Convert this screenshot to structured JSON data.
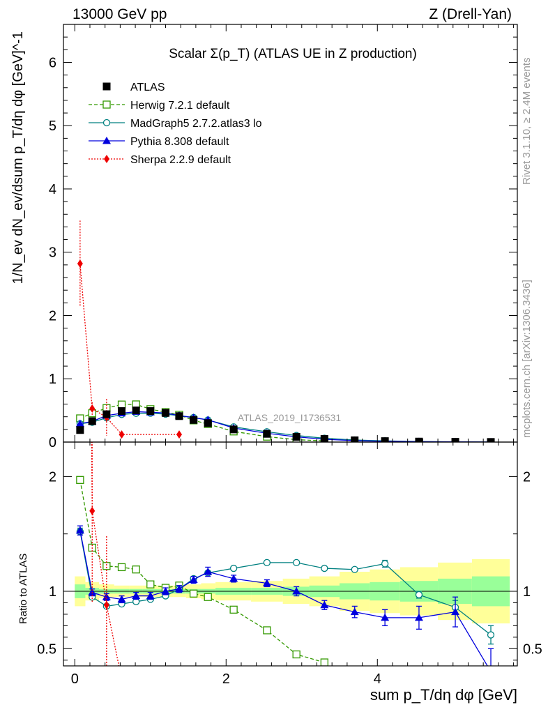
{
  "header": {
    "left": "13000 GeV pp",
    "right": "Z (Drell-Yan)"
  },
  "side_labels": {
    "rivet": "Rivet 3.1.10, ≥ 2.4M events",
    "mcplots": "mcplots.cern.ch [arXiv:1306.3436]"
  },
  "chart_data": {
    "type": "line",
    "title": "Scalar Σ(p_T) (ATLAS UE in Z production)",
    "watermark": "ATLAS_2019_I1736531",
    "xlabel": "sum p_T/dη dφ [GeV]",
    "ylabel_main": "1/N_ev dN_ev/dsum p_T/dη dφ [GeV]^-1",
    "ylabel_ratio": "Ratio to ATLAS",
    "xlim": [
      -0.15,
      5.85
    ],
    "ylim_main": [
      0,
      6.6
    ],
    "ylim_ratio": [
      0.35,
      2.3
    ],
    "x_ticks": [
      0,
      2,
      4
    ],
    "y_ticks_main": [
      0,
      1,
      2,
      3,
      4,
      5,
      6
    ],
    "y_ticks_ratio": [
      0.5,
      1,
      2
    ],
    "legend_position": "top-left",
    "x": [
      0.07,
      0.23,
      0.42,
      0.62,
      0.81,
      1.0,
      1.2,
      1.38,
      1.57,
      1.76,
      2.1,
      2.54,
      2.93,
      3.3,
      3.7,
      4.1,
      4.55,
      5.03,
      5.5
    ],
    "data_series": {
      "name": "ATLAS",
      "values": [
        0.19,
        0.33,
        0.44,
        0.49,
        0.5,
        0.49,
        0.46,
        0.41,
        0.35,
        0.3,
        0.2,
        0.13,
        0.083,
        0.05,
        0.028,
        0.015,
        0.008,
        0.004,
        0.002
      ]
    },
    "band_x_edges": [
      0.0,
      0.14,
      0.32,
      0.52,
      0.72,
      0.9,
      1.1,
      1.3,
      1.47,
      1.67,
      1.86,
      2.33,
      2.75,
      3.1,
      3.5,
      3.9,
      4.3,
      4.8,
      5.25,
      5.75
    ],
    "band_inner": [
      0.06,
      0.03,
      0.02,
      0.02,
      0.02,
      0.02,
      0.02,
      0.02,
      0.02,
      0.02,
      0.03,
      0.03,
      0.04,
      0.05,
      0.07,
      0.08,
      0.09,
      0.11,
      0.13
    ],
    "band_outer": [
      0.13,
      0.08,
      0.06,
      0.05,
      0.05,
      0.05,
      0.05,
      0.05,
      0.06,
      0.07,
      0.08,
      0.09,
      0.11,
      0.13,
      0.17,
      0.19,
      0.21,
      0.25,
      0.28
    ],
    "series": [
      {
        "name": "Herwig 7.2.1 default",
        "color": "#339900",
        "marker": "open-square",
        "dash": "5,3",
        "x": [
          0.07,
          0.23,
          0.42,
          0.62,
          0.81,
          1.0,
          1.2,
          1.38,
          1.57,
          1.76,
          2.1,
          2.54,
          2.93,
          3.3
        ],
        "ratio": [
          1.97,
          1.38,
          1.22,
          1.21,
          1.19,
          1.06,
          1.03,
          1.05,
          0.98,
          0.95,
          0.84,
          0.66,
          0.45,
          0.38
        ],
        "ratio_err": [
          0.02,
          0.02,
          0.02,
          0.02,
          0.02,
          0.02,
          0.02,
          0.02,
          0.02,
          0.02,
          0.02,
          0.02,
          0.02,
          0.02
        ]
      },
      {
        "name": "MadGraph5 2.7.2.atlas3 lo",
        "color": "#008080",
        "marker": "open-circle",
        "dash": "",
        "x": [
          0.07,
          0.23,
          0.42,
          0.62,
          0.81,
          1.0,
          1.2,
          1.38,
          1.57,
          1.76,
          2.1,
          2.54,
          2.93,
          3.3,
          3.7,
          4.1,
          4.55,
          5.03,
          5.5
        ],
        "ratio": [
          1.52,
          0.95,
          0.87,
          0.89,
          0.91,
          0.93,
          0.96,
          1.02,
          1.11,
          1.16,
          1.2,
          1.25,
          1.25,
          1.2,
          1.19,
          1.24,
          0.97,
          0.86,
          0.62
        ],
        "ratio_err": [
          0.03,
          0.02,
          0.02,
          0.02,
          0.02,
          0.02,
          0.02,
          0.02,
          0.02,
          0.02,
          0.02,
          0.02,
          0.02,
          0.02,
          0.02,
          0.03,
          0.03,
          0.06,
          0.08
        ]
      },
      {
        "name": "Pythia 8.308 default",
        "color": "#0000dd",
        "marker": "triangle",
        "dash": "",
        "x": [
          0.07,
          0.23,
          0.42,
          0.62,
          0.81,
          1.0,
          1.2,
          1.38,
          1.57,
          1.76,
          2.1,
          2.54,
          2.93,
          3.3,
          3.7,
          4.1,
          4.55,
          5.03,
          5.5
        ],
        "ratio": [
          1.53,
          0.99,
          0.95,
          0.93,
          0.96,
          0.96,
          1.0,
          1.02,
          1.1,
          1.17,
          1.11,
          1.07,
          1.0,
          0.88,
          0.82,
          0.77,
          0.77,
          0.82,
          0.3
        ],
        "ratio_err": [
          0.04,
          0.03,
          0.03,
          0.03,
          0.03,
          0.03,
          0.03,
          0.03,
          0.03,
          0.04,
          0.03,
          0.03,
          0.04,
          0.04,
          0.05,
          0.07,
          0.1,
          0.13,
          0.2
        ]
      },
      {
        "name": "Sherpa 2.2.9 default",
        "color": "#ee0000",
        "marker": "diamond",
        "dash": "2,2",
        "x": [
          0.07,
          0.23,
          0.42,
          0.62,
          1.38
        ],
        "main_values": [
          2.82,
          0.53,
          0.39,
          0.12,
          0.12
        ],
        "main_err": [
          0.68,
          0.1,
          0.29,
          0.03,
          0.03
        ],
        "ratio": [
          14.6,
          1.7,
          0.88,
          0.23,
          0.28
        ],
        "ratio_err": [
          3.0,
          0.8,
          0.6,
          0.05,
          0.05
        ]
      }
    ]
  }
}
